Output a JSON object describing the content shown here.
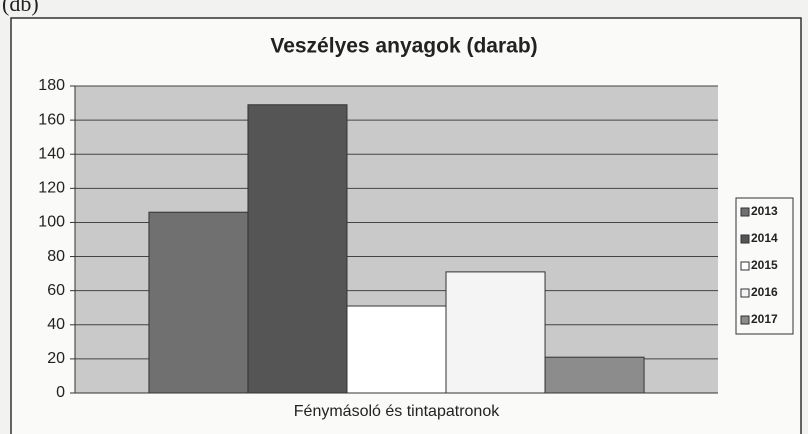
{
  "unit_label": "(db)",
  "chart_data": {
    "type": "bar",
    "title": "Veszélyes anyagok (darab)",
    "categories": [
      "Fénymásoló és tintapatronok"
    ],
    "series": [
      {
        "name": "2013",
        "color": "#707070",
        "values": [
          106
        ]
      },
      {
        "name": "2014",
        "color": "#555555",
        "values": [
          169
        ]
      },
      {
        "name": "2015",
        "color": "#ffffff",
        "values": [
          51
        ]
      },
      {
        "name": "2016",
        "color": "#f4f4f4",
        "values": [
          71
        ]
      },
      {
        "name": "2017",
        "color": "#8c8c8c",
        "values": [
          21
        ]
      }
    ],
    "ylim": [
      0,
      180
    ],
    "yticks": [
      0,
      20,
      40,
      60,
      80,
      100,
      120,
      140,
      160,
      180
    ],
    "grid": true,
    "legend": "right"
  }
}
